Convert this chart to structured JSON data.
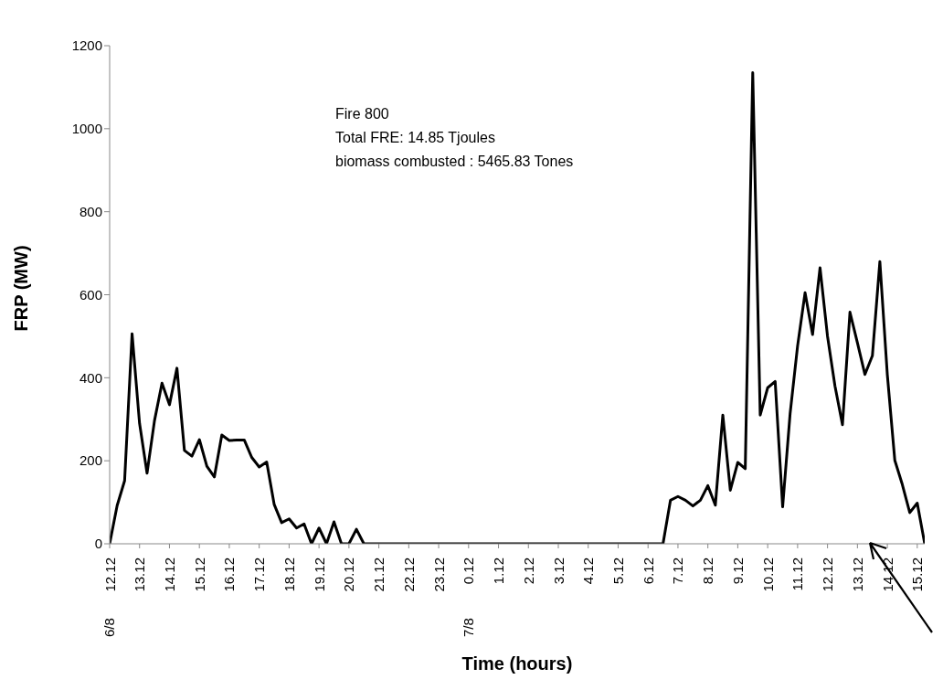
{
  "chart_data": {
    "type": "line",
    "xlabel": "Time (hours)",
    "ylabel": "FRP (MW)",
    "annotations": [
      "Fire 800",
      "Total FRE: 14.85 Tjoules",
      "biomass combusted :  5465.83 Tones",
      "6/8",
      "7/8"
    ],
    "categories": [
      "12.12",
      null,
      null,
      null,
      "13.12",
      null,
      null,
      null,
      "14.12",
      null,
      null,
      null,
      "15.12",
      null,
      null,
      null,
      "16.12",
      null,
      null,
      null,
      "17.12",
      null,
      null,
      null,
      "18.12",
      null,
      null,
      null,
      "19.12",
      null,
      null,
      null,
      "20.12",
      null,
      null,
      null,
      "21.12",
      null,
      null,
      null,
      "22.12",
      null,
      null,
      null,
      "23.12",
      null,
      null,
      null,
      "0.12",
      null,
      null,
      null,
      "1.12",
      null,
      null,
      null,
      "2.12",
      null,
      null,
      null,
      "3.12",
      null,
      null,
      null,
      "4.12",
      null,
      null,
      null,
      "5.12",
      null,
      null,
      null,
      "6.12",
      null,
      null,
      null,
      "7.12",
      null,
      null,
      null,
      "8.12",
      null,
      null,
      null,
      "9.12",
      null,
      null,
      null,
      "10.12",
      null,
      null,
      null,
      "11.12",
      null,
      null,
      null,
      "12.12",
      null,
      null,
      null,
      "13.12",
      null,
      null,
      null,
      "14.12",
      null,
      null,
      null,
      "15.12",
      null
    ],
    "series": [
      {
        "color": "#000000",
        "values": [
          0,
          92,
          152,
          506,
          290,
          170,
          297,
          387,
          335,
          423,
          225,
          211,
          251,
          187,
          161,
          262,
          249,
          250,
          250,
          208,
          185,
          197,
          95,
          51,
          60,
          38,
          48,
          0,
          38,
          0,
          53,
          0,
          0,
          35,
          0,
          0,
          0,
          0,
          0,
          0,
          0,
          0,
          0,
          0,
          0,
          0,
          0,
          0,
          0,
          0,
          0,
          0,
          0,
          0,
          0,
          0,
          0,
          0,
          0,
          0,
          0,
          0,
          0,
          0,
          0,
          0,
          0,
          0,
          0,
          0,
          0,
          0,
          0,
          0,
          0,
          105,
          114,
          105,
          91,
          105,
          140,
          93,
          310,
          129,
          196,
          181,
          1135,
          310,
          376,
          391,
          89,
          314,
          477,
          605,
          504,
          665,
          500,
          380,
          287,
          558,
          484,
          408,
          453,
          680,
          407,
          201,
          143,
          75,
          98,
          0
        ]
      }
    ],
    "ylim": [
      0,
      1200
    ],
    "yticks": [
      0,
      200,
      400,
      600,
      800,
      1000,
      1200
    ],
    "grid": false,
    "legend": false,
    "marker": "none",
    "line_style": "solid"
  }
}
